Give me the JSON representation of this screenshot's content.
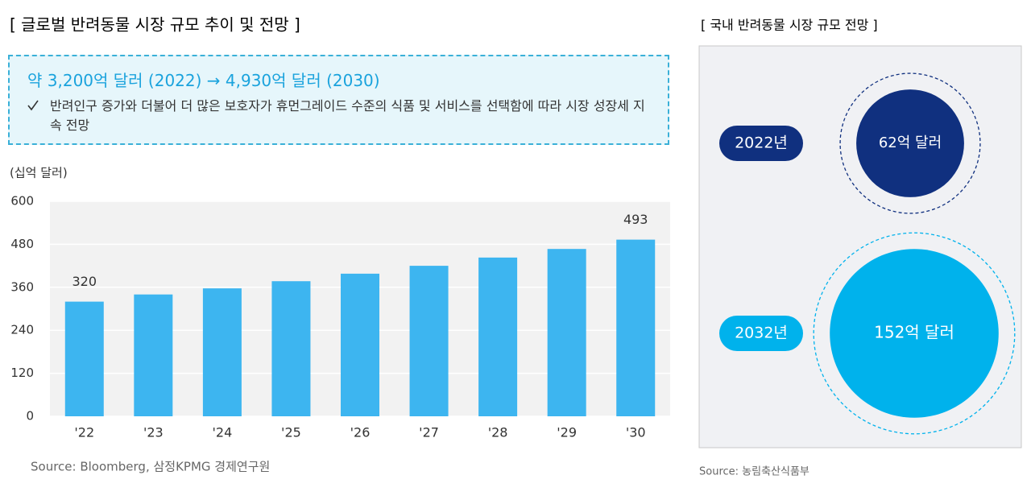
{
  "chart_data": [
    {
      "type": "bar",
      "title": "[ 글로벌 반려동물 시장 규모 추이 및 전망 ]",
      "y_label": "(십억 달러)",
      "categories": [
        "'22",
        "'23",
        "'24",
        "'25",
        "'26",
        "'27",
        "'28",
        "'29",
        "'30"
      ],
      "values": [
        320,
        340,
        357,
        377,
        398,
        420,
        443,
        467,
        493
      ],
      "value_labels": [
        "320",
        null,
        null,
        null,
        null,
        null,
        null,
        null,
        "493"
      ],
      "color": "#3db5f0",
      "ylim": [
        0,
        600
      ],
      "yticks": [
        0,
        120,
        240,
        360,
        480,
        600
      ],
      "grid": true,
      "source": "Source: Bloomberg, 삼정KPMG 경제연구원"
    },
    {
      "type": "bubble",
      "title": "[ 국내 반려동물 시장 규모 전망 ]",
      "categories": [
        "2022년",
        "2032년"
      ],
      "values": [
        62,
        152
      ],
      "value_labels": [
        "62억 달러",
        "152억 달러"
      ],
      "colors": [
        "#10307f",
        "#00b2ec"
      ],
      "source": "Source: 농림축산식품부"
    }
  ],
  "callout": {
    "headline": "약 3,200억 달러 (2022) → 4,930억 달러 (2030)",
    "note": "반려인구 증가와 더불어 더 많은 보호자가 휴먼그레이드 수준의 식품 및 서비스를 선택함에 따라 시장 성장세 지속 전망"
  }
}
